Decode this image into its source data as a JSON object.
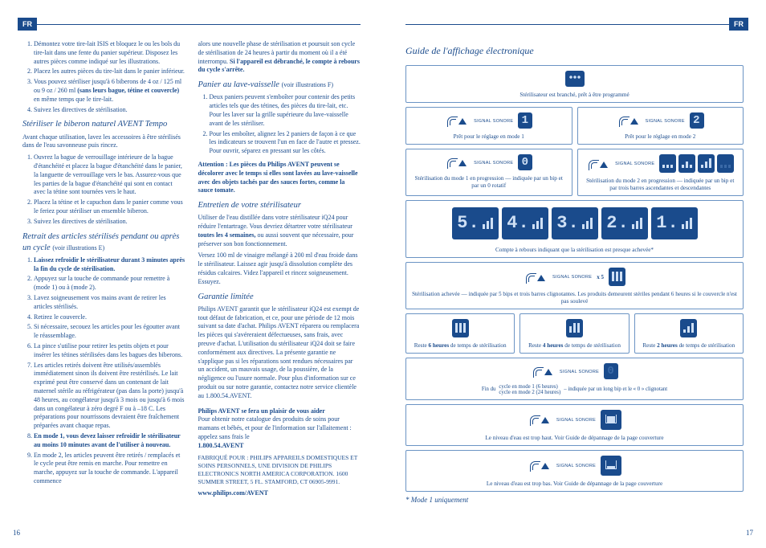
{
  "lang_tab": "FR",
  "colors": {
    "brand": "#1a4b8c",
    "lcd_bg": "#1a4b8c",
    "lcd_fg": "#cfe0f5",
    "lcd_dim": "#3a6aa8",
    "panel_border": "#6b94c4"
  },
  "left": {
    "page_num": "16",
    "col1": {
      "intro_list": [
        "Démontez votre tire-lait ISIS et bloquez le ou les bols du tire-lait dans une fente du panier supérieur. Disposez les autres pièces comme indiqué sur les illustrations.",
        "Placez les autres pièces du tire-lait dans le panier inférieur.",
        "Vous pouvez stériliser jusqu'à 6 biberons de 4 oz / 125 ml ou 9 oz / 260 ml <b>(sans leurs bague, tétine et couvercle)</b> en même temps que le tire-lait.",
        "Suivez les directives de stérilisation."
      ],
      "h1": "Stériliser le biberon naturel AVENT Tempo",
      "p1": "Avant chaque utilisation, lavez les accessoires à être stérilisés dans de l'eau savonneuse puis rincez.",
      "list1": [
        "Ouvrez la bague de verrouillage intérieure de la bague d'étanchéité et placez la bague d'étanchéité dans le panier, la languette de verrouillage vers le bas. Assurez-vous que les parties de la bague d'étanchéité qui sont en contact avec la tétine sont tournées vers le haut.",
        "Placez la tétine et le capuchon dans le panier comme vous le feriez pour stériliser un ensemble biberon.",
        "Suivez les directives de stérilisation."
      ],
      "h2": "Retrait des articles stérilisés pendant ou après un cycle",
      "h2_note": "(voir illustrations E)",
      "list2": [
        "<b>Laissez refroidir le stérilisateur durant 3 minutes après la fin du cycle de stérilisation.</b>",
        "Appuyez sur la touche de commande pour remettre à (mode 1) ou à (mode 2).",
        "Lavez soigneusement vos mains avant de retirer les articles stérilisés.",
        "Retirez le couvercle.",
        "Si nécessaire, secouez les articles pour les égoutter avant le réassemblage.",
        "La pince s'utilise pour retirer les petits objets et pour insérer les tétines stérilisées dans les bagues des biberons.",
        "Les articles retirés doivent être utilisés/assemblés immédiatement sinon ils doivent être restérilisés. Le lait exprimé peut être conservé dans un contenant de lait maternel stérile au réfrigérateur (pas dans la porte) jusqu'à 48 heures, au congélateur jusqu'à 3 mois ou jusqu'à 6 mois dans un congélateur à zéro degré F ou à –18 C. Les préparations pour nourrissons devraient être fraîchement préparées avant chaque repas.",
        "<b>En mode 1, vous devez laisser refroidir le stérilisateur au moins 10 minutes avant de l'utiliser à nouveau.</b>",
        "En mode 2, les articles peuvent être retirés / remplacés et le cycle peut être remis en marche. Pour remettre en marche, appuyez sur la touche de commande. L'appareil commence"
      ]
    },
    "col2": {
      "cont": "alors une nouvelle phase de stérilisation et poursuit son cycle de stérilisation de 24 heures à partir du moment où il a été interrompu. <b>Si l'appareil est débranché, le compte à rebours du cycle s'arrête.</b>",
      "h1": "Panier au lave-vaisselle",
      "h1_note": "(voir illustrations F)",
      "list1": [
        "Deux paniers peuvent s'emboîter pour contenir des petits articles tels que des tétines, des pièces du tire-lait, etc. Pour les laver sur la grille supérieure du lave-vaisselle avant de les stériliser.",
        "Pour les emboîter, alignez les 2 paniers de façon à ce que les indicateurs se trouvent l'un en face de l'autre et pressez. Pour ouvrir, séparez en pressant sur les côtés."
      ],
      "warn1": "Attention : Les pièces du Philips AVENT peuvent se décolorer avec le temps si elles sont lavées au lave-vaisselle avec des objets tachés par des sauces fortes, comme la sauce tomate.",
      "h2": "Entretien de votre stérilisateur",
      "p2a": "Utiliser de l'eau distillée dans votre stérilisateur iQ24 pour réduire l'entartrage. Vous devriez détartrer votre stérilisateur <b>toutes les 4 semaines,</b> ou aussi souvent que nécessaire, pour préserver son bon fonctionnement.",
      "p2b": "Versez 100 ml de vinaigre mélangé à 200 ml d'eau froide dans le stérilisateur. Laissez agir jusqu'à dissolution complète des résidus calcaires. Videz l'appareil et rincez soigneusement. Essuyez.",
      "h3": "Garantie limitée",
      "p3": "Philips AVENT garantit que le stérilisateur iQ24 est exempt de tout défaut de fabrication, et ce, pour une période de 12 mois suivant sa date d'achat. Philips AVENT réparera ou remplacera les pièces qui s'avéreraient défectueuses, sans frais, avec preuve d'achat. L'utilisation du stérilisateur iQ24 doit se faire conformément aux directives. La présente garantie ne s'applique pas si les réparations sont rendues nécessaires par un accident, un mauvais usage, de la poussière, de la négligence ou l'usure normale. Pour plus d'information sur ce produit ou sur notre garantie, contactez notre service clientèle au 1.800.54.AVENT.",
      "help_title": "Philips AVENT se fera un plaisir de vous aider",
      "help_body": "Pour obtenir notre catalogue des produits de soins pour mamans et bébés, et pour de l'information sur l'allaitement : appelez sans frais le",
      "phone": "1.800.54.AVENT",
      "addr": "FABRIQUÉ POUR : PHILIPS APPAREILS DOMESTIQUES ET SOINS PERSONNELS, UNE DIVISION DE PHILIPS ELECTRONICS NORTH AMERICA CORPORATION. 1600 SUMMER STREET, 5 FL. STAMFORD, CT 06905-9991.",
      "url": "www.philips.com/AVENT"
    }
  },
  "right": {
    "page_num": "17",
    "title": "Guide de l'affichage électronique",
    "signal_label": "SIGNAL SONORE",
    "panel1": "Stérilisateur est branché, prêt à être programmé",
    "panel2a": "Prêt pour le réglage en mode 1",
    "panel2b": "Prêt pour le réglage en mode 2",
    "panel3a": "Stérilisation du mode 1 en progression — indiquée par un bip et par un 0 rotatif",
    "panel3b": "Stérilisation du mode 2 en progression — indiquée par un bip et par trois barres ascendantes et descendantes",
    "countdown": [
      "5",
      "4",
      "3",
      "2",
      "1"
    ],
    "panel4": "Compte à rebours indiquant que la stérilisation est presque achevée*",
    "panel5_x5": "x 5",
    "panel5": "Stérilisation achevée — indiquée par 5 bips et trois barres clignotantes. Les produits demeurent stériles pendant 6 heures si le couvercle n'est pas soulevé",
    "panel6a": "Reste <b>6 heures</b> de temps de stérilisation",
    "panel6b": "Reste <b>4 heures</b> de temps de stérilisation",
    "panel6c": "Reste <b>2 heures</b> de temps de stérilisation",
    "panel7_pre": "Fin du",
    "panel7_l1": "cycle en mode 1 (6 heures)",
    "panel7_l2": "cycle en mode 2 (24 heures)",
    "panel7_post": "– indiquée par un long bip et le « 0 » clignotant",
    "panel8": "Le niveau d'eau est trop haut. Voir Guide de dépannage de la page couverture",
    "panel9": "Le niveau d'eau est trop bas. Voir Guide de dépannage de la page couverture",
    "footnote": "* Mode 1 uniquement"
  }
}
